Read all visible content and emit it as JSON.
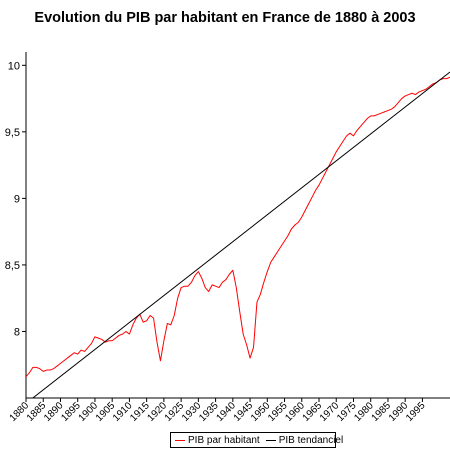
{
  "chart_data": {
    "type": "line",
    "title": "Evolution du PIB par habitant en France de 1880 à 2003",
    "xlabel": "",
    "ylabel": "",
    "xlim": [
      1880,
      2003
    ],
    "ylim": [
      7.5,
      10.1
    ],
    "y_ticks": [
      {
        "value": 8,
        "label": "8"
      },
      {
        "value": 8.5,
        "label": "8,5"
      },
      {
        "value": 9,
        "label": "9"
      },
      {
        "value": 9.5,
        "label": "9,5"
      },
      {
        "value": 10,
        "label": "10"
      }
    ],
    "x_ticks": [
      "1880",
      "1885",
      "1890",
      "1895",
      "1900",
      "1905",
      "1910",
      "1915",
      "1920",
      "1925",
      "1930",
      "1935",
      "1940",
      "1945",
      "1950",
      "1955",
      "1960",
      "1965",
      "1970",
      "1975",
      "1980",
      "1985",
      "1990",
      "1995"
    ],
    "legend_position": "bottom",
    "grid": false,
    "series": [
      {
        "name": "PIB par habitant",
        "color": "#ff0000",
        "points": [
          [
            1880,
            7.66
          ],
          [
            1881,
            7.69
          ],
          [
            1882,
            7.73
          ],
          [
            1883,
            7.73
          ],
          [
            1884,
            7.72
          ],
          [
            1885,
            7.7
          ],
          [
            1886,
            7.71
          ],
          [
            1887,
            7.71
          ],
          [
            1888,
            7.72
          ],
          [
            1889,
            7.74
          ],
          [
            1890,
            7.76
          ],
          [
            1891,
            7.78
          ],
          [
            1892,
            7.8
          ],
          [
            1893,
            7.82
          ],
          [
            1894,
            7.84
          ],
          [
            1895,
            7.83
          ],
          [
            1896,
            7.86
          ],
          [
            1897,
            7.85
          ],
          [
            1898,
            7.88
          ],
          [
            1899,
            7.91
          ],
          [
            1900,
            7.96
          ],
          [
            1901,
            7.95
          ],
          [
            1902,
            7.94
          ],
          [
            1903,
            7.92
          ],
          [
            1904,
            7.93
          ],
          [
            1905,
            7.93
          ],
          [
            1906,
            7.95
          ],
          [
            1907,
            7.97
          ],
          [
            1908,
            7.98
          ],
          [
            1909,
            8.0
          ],
          [
            1910,
            7.98
          ],
          [
            1911,
            8.05
          ],
          [
            1912,
            8.1
          ],
          [
            1913,
            8.13
          ],
          [
            1914,
            8.07
          ],
          [
            1915,
            8.08
          ],
          [
            1916,
            8.12
          ],
          [
            1917,
            8.1
          ],
          [
            1918,
            7.92
          ],
          [
            1919,
            7.78
          ],
          [
            1920,
            7.93
          ],
          [
            1921,
            8.06
          ],
          [
            1922,
            8.05
          ],
          [
            1923,
            8.12
          ],
          [
            1924,
            8.25
          ],
          [
            1925,
            8.33
          ],
          [
            1926,
            8.34
          ],
          [
            1927,
            8.34
          ],
          [
            1928,
            8.37
          ],
          [
            1929,
            8.42
          ],
          [
            1930,
            8.45
          ],
          [
            1931,
            8.4
          ],
          [
            1932,
            8.33
          ],
          [
            1933,
            8.3
          ],
          [
            1934,
            8.35
          ],
          [
            1935,
            8.34
          ],
          [
            1936,
            8.33
          ],
          [
            1937,
            8.37
          ],
          [
            1938,
            8.39
          ],
          [
            1939,
            8.43
          ],
          [
            1940,
            8.46
          ],
          [
            1941,
            8.33
          ],
          [
            1942,
            8.15
          ],
          [
            1943,
            7.98
          ],
          [
            1944,
            7.9
          ],
          [
            1945,
            7.8
          ],
          [
            1946,
            7.88
          ],
          [
            1947,
            8.22
          ],
          [
            1948,
            8.28
          ],
          [
            1949,
            8.37
          ],
          [
            1950,
            8.45
          ],
          [
            1951,
            8.52
          ],
          [
            1952,
            8.56
          ],
          [
            1953,
            8.6
          ],
          [
            1954,
            8.64
          ],
          [
            1955,
            8.68
          ],
          [
            1956,
            8.72
          ],
          [
            1957,
            8.77
          ],
          [
            1958,
            8.8
          ],
          [
            1959,
            8.82
          ],
          [
            1960,
            8.86
          ],
          [
            1961,
            8.91
          ],
          [
            1962,
            8.96
          ],
          [
            1963,
            9.01
          ],
          [
            1964,
            9.06
          ],
          [
            1965,
            9.1
          ],
          [
            1966,
            9.15
          ],
          [
            1967,
            9.2
          ],
          [
            1968,
            9.25
          ],
          [
            1969,
            9.3
          ],
          [
            1970,
            9.35
          ],
          [
            1971,
            9.39
          ],
          [
            1972,
            9.43
          ],
          [
            1973,
            9.47
          ],
          [
            1974,
            9.49
          ],
          [
            1975,
            9.47
          ],
          [
            1976,
            9.51
          ],
          [
            1977,
            9.54
          ],
          [
            1978,
            9.57
          ],
          [
            1979,
            9.6
          ],
          [
            1980,
            9.62
          ],
          [
            1981,
            9.62
          ],
          [
            1982,
            9.63
          ],
          [
            1983,
            9.64
          ],
          [
            1984,
            9.65
          ],
          [
            1985,
            9.66
          ],
          [
            1986,
            9.67
          ],
          [
            1987,
            9.69
          ],
          [
            1988,
            9.72
          ],
          [
            1989,
            9.75
          ],
          [
            1990,
            9.77
          ],
          [
            1991,
            9.78
          ],
          [
            1992,
            9.79
          ],
          [
            1993,
            9.78
          ],
          [
            1994,
            9.8
          ],
          [
            1995,
            9.81
          ],
          [
            1996,
            9.82
          ],
          [
            1997,
            9.84
          ],
          [
            1998,
            9.86
          ],
          [
            1999,
            9.87
          ],
          [
            2000,
            9.89
          ],
          [
            2001,
            9.9
          ],
          [
            2002,
            9.9
          ],
          [
            2003,
            9.91
          ]
        ]
      },
      {
        "name": "PIB tendanciel",
        "color": "#000000",
        "points": [
          [
            1880,
            7.46
          ],
          [
            2003,
            9.95
          ]
        ]
      }
    ]
  }
}
